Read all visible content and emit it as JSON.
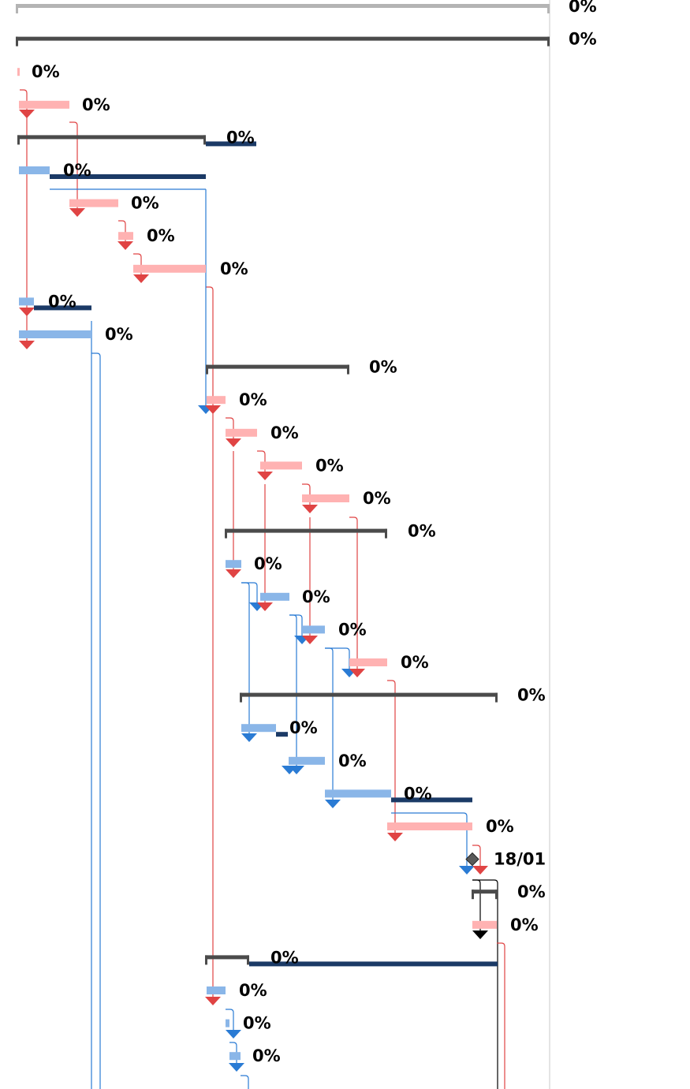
{
  "gantt": {
    "colors": {
      "critical_task": "#ffb2b2",
      "normal_task": "#8ab6e8",
      "summary": "#4b4b4b",
      "project_summary": "#b4b4b4",
      "slack": "#1b3a66",
      "critical_link": "#e04444",
      "normal_link": "#2a7bd4",
      "milestone": "#5a5a5a",
      "label": "#000000",
      "grid_line": "#c8c8c8"
    },
    "rows": [
      {
        "kind": "project_summary",
        "label": "0%"
      },
      {
        "kind": "summary",
        "label": "0%"
      },
      {
        "kind": "critical_task",
        "label": "0%"
      },
      {
        "kind": "critical_task",
        "label": "0%"
      },
      {
        "kind": "summary",
        "label": "0%"
      },
      {
        "kind": "normal_task",
        "label": "0%"
      },
      {
        "kind": "critical_task",
        "label": "0%"
      },
      {
        "kind": "critical_task",
        "label": "0%"
      },
      {
        "kind": "critical_task",
        "label": "0%"
      },
      {
        "kind": "normal_task",
        "label": "0%"
      },
      {
        "kind": "normal_task",
        "label": "0%"
      },
      {
        "kind": "summary",
        "label": "0%"
      },
      {
        "kind": "critical_task",
        "label": "0%"
      },
      {
        "kind": "critical_task",
        "label": "0%"
      },
      {
        "kind": "critical_task",
        "label": "0%"
      },
      {
        "kind": "critical_task",
        "label": "0%"
      },
      {
        "kind": "summary",
        "label": "0%"
      },
      {
        "kind": "normal_task",
        "label": "0%"
      },
      {
        "kind": "normal_task",
        "label": "0%"
      },
      {
        "kind": "normal_task",
        "label": "0%"
      },
      {
        "kind": "critical_task",
        "label": "0%"
      },
      {
        "kind": "summary",
        "label": "0%"
      },
      {
        "kind": "normal_task",
        "label": "0%"
      },
      {
        "kind": "normal_task",
        "label": "0%"
      },
      {
        "kind": "normal_task",
        "label": "0%"
      },
      {
        "kind": "critical_task",
        "label": "0%"
      },
      {
        "kind": "milestone",
        "label": "18/01"
      },
      {
        "kind": "summary",
        "label": "0%"
      },
      {
        "kind": "critical_task",
        "label": "0%"
      },
      {
        "kind": "summary",
        "label": "0%"
      },
      {
        "kind": "normal_task",
        "label": "0%"
      },
      {
        "kind": "normal_task",
        "label": "0%"
      },
      {
        "kind": "normal_task",
        "label": "0%"
      }
    ]
  }
}
